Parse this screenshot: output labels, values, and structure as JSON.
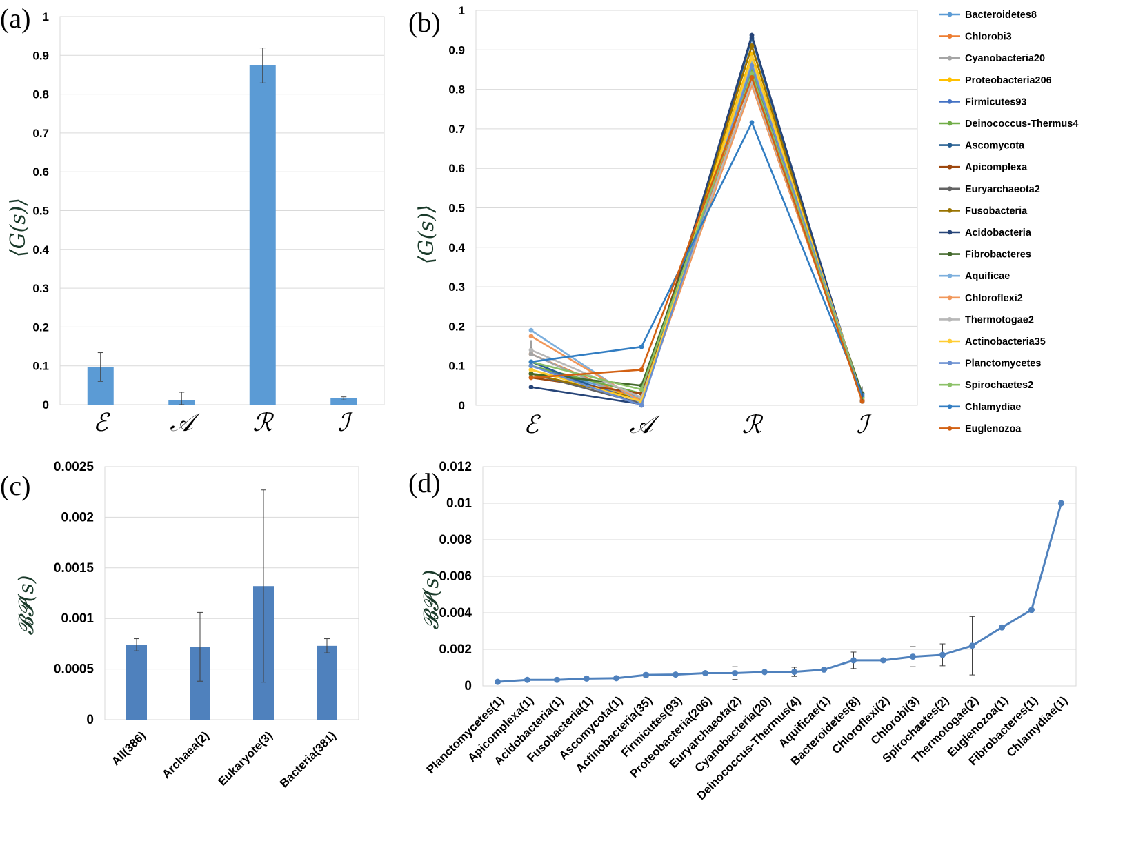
{
  "chart_data": [
    {
      "id": "a",
      "type": "bar",
      "panel_label": "(a)",
      "ylabel": "⟨G(s)⟩",
      "categories": [
        "ℰ",
        "𝒜",
        "ℛ",
        "ℐ"
      ],
      "values": [
        0.097,
        0.012,
        0.874,
        0.016
      ],
      "errors": [
        0.037,
        0.02,
        0.045,
        0.004
      ],
      "ylim": [
        0,
        1
      ],
      "yticks": [
        0,
        0.1,
        0.2,
        0.3,
        0.4,
        0.5,
        0.6,
        0.7,
        0.8,
        0.9,
        1
      ],
      "ytick_labels": [
        "0",
        "0.1",
        "0.2",
        "0.3",
        "0.4",
        "0.5",
        "0.6",
        "0.7",
        "0.8",
        "0.9",
        "1"
      ],
      "color": "#5b9bd5",
      "grid": true
    },
    {
      "id": "b",
      "type": "line",
      "panel_label": "(b)",
      "ylabel": "⟨G(s)⟩",
      "categories": [
        "ℰ",
        "𝒜",
        "ℛ",
        "ℐ"
      ],
      "ylim": [
        0,
        1
      ],
      "yticks": [
        0,
        0.1,
        0.2,
        0.3,
        0.4,
        0.5,
        0.6,
        0.7,
        0.8,
        0.9,
        1
      ],
      "ytick_labels": [
        "0",
        "0.1",
        "0.2",
        "0.3",
        "0.4",
        "0.5",
        "0.6",
        "0.7",
        "0.8",
        "0.9",
        "1"
      ],
      "legend_position": "right",
      "series": [
        {
          "name": "Bacteroidetes8",
          "color": "#5b9bd5",
          "values": [
            0.1,
            0.02,
            0.85,
            0.02
          ]
        },
        {
          "name": "Chlorobi3",
          "color": "#ed7d31",
          "values": [
            0.13,
            0.01,
            0.84,
            0.015
          ]
        },
        {
          "name": "Cyanobacteria20",
          "color": "#a5a5a5",
          "values": [
            0.13,
            0.005,
            0.86,
            0.02
          ]
        },
        {
          "name": "Proteobacteria206",
          "color": "#ffc000",
          "values": [
            0.09,
            0.015,
            0.89,
            0.02
          ]
        },
        {
          "name": "Firmicutes93",
          "color": "#4472c4",
          "values": [
            0.1,
            0.01,
            0.87,
            0.02
          ]
        },
        {
          "name": "Deinococcus-Thermus4",
          "color": "#70ad47",
          "values": [
            0.1,
            0.03,
            0.85,
            0.02
          ]
        },
        {
          "name": "Ascomycota",
          "color": "#255e91",
          "values": [
            0.11,
            0.0,
            0.93,
            0.01
          ]
        },
        {
          "name": "Apicomplexa",
          "color": "#9e480e",
          "values": [
            0.07,
            0.03,
            0.91,
            0.01
          ]
        },
        {
          "name": "Euryarchaeota2",
          "color": "#636363",
          "values": [
            0.08,
            0.005,
            0.88,
            0.02
          ]
        },
        {
          "name": "Fusobacteria",
          "color": "#997300",
          "values": [
            0.08,
            0.015,
            0.91,
            0.01
          ]
        },
        {
          "name": "Acidobacteria",
          "color": "#264478",
          "values": [
            0.046,
            0.003,
            0.937,
            0.01
          ]
        },
        {
          "name": "Fibrobacteres",
          "color": "#43682b",
          "values": [
            0.08,
            0.05,
            0.84,
            0.03
          ]
        },
        {
          "name": "Aquificae",
          "color": "#7cafdd",
          "values": [
            0.19,
            0.005,
            0.87,
            0.02
          ]
        },
        {
          "name": "Chloroflexi2",
          "color": "#f1975a",
          "values": [
            0.175,
            0.01,
            0.81,
            0.02
          ]
        },
        {
          "name": "Thermotogae2",
          "color": "#b7b7b7",
          "values": [
            0.14,
            0.02,
            0.82,
            0.02
          ]
        },
        {
          "name": "Actinobacteria35",
          "color": "#ffcd33",
          "values": [
            0.09,
            0.01,
            0.88,
            0.02
          ]
        },
        {
          "name": "Planctomycetes",
          "color": "#698ed0",
          "values": [
            0.1,
            0.0,
            0.86,
            0.02
          ]
        },
        {
          "name": "Spirochaetes2",
          "color": "#8cc168",
          "values": [
            0.11,
            0.04,
            0.84,
            0.02
          ]
        },
        {
          "name": "Chlamydiae",
          "color": "#327dc2",
          "values": [
            0.11,
            0.148,
            0.716,
            0.026
          ]
        },
        {
          "name": "Euglenozoa",
          "color": "#d26012",
          "values": [
            0.07,
            0.09,
            0.83,
            0.01
          ]
        }
      ]
    },
    {
      "id": "c",
      "type": "bar",
      "panel_label": "(c)",
      "ylabel": "𝓑𝓟(s)",
      "categories": [
        "All(386)",
        "Archaea(2)",
        "Eukaryote(3)",
        "Bacteria(381)"
      ],
      "values": [
        0.00074,
        0.00072,
        0.00132,
        0.00073
      ],
      "errors": [
        6e-05,
        0.00034,
        0.00095,
        7e-05
      ],
      "ylim": [
        0,
        0.0025
      ],
      "yticks": [
        0,
        0.0005,
        0.001,
        0.0015,
        0.002,
        0.0025
      ],
      "ytick_labels": [
        "0",
        "0.0005",
        "0.001",
        "0.0015",
        "0.002",
        "0.0025"
      ],
      "color": "#4f81bd",
      "grid": true
    },
    {
      "id": "d",
      "type": "line",
      "panel_label": "(d)",
      "ylabel": "𝓑𝓟(s)",
      "categories": [
        "Planctomycetes(1)",
        "Apicomplexa(1)",
        "Acidobacteria(1)",
        "Fusobacteria(1)",
        "Ascomycota(1)",
        "Actinobacteria(35)",
        "Firmicutes(93)",
        "Proteobacteria(206)",
        "Euryarchaeota(2)",
        "Cyanobacteria(20)",
        "Deinococcus-Thermus(4)",
        "Aquificae(1)",
        "Bacteroidetes(8)",
        "Chloroflexi(2)",
        "Chlorobi(3)",
        "Spirochaetes(2)",
        "Thermotogae(2)",
        "Euglenozoa(1)",
        "Fibrobacteres(1)",
        "Chlamydiae(1)"
      ],
      "values": [
        0.00022,
        0.00033,
        0.00033,
        0.0004,
        0.00042,
        0.0006,
        0.00062,
        0.0007,
        0.0007,
        0.00076,
        0.00077,
        0.00089,
        0.0014,
        0.0014,
        0.0016,
        0.0017,
        0.0022,
        0.0032,
        0.00416,
        0.01
      ],
      "errors": [
        0,
        0,
        0,
        0,
        0,
        0.0001,
        0,
        0,
        0.00035,
        0,
        0.00025,
        0,
        0.00045,
        0,
        0.00055,
        0.0006,
        0.0016,
        0,
        0,
        0
      ],
      "ylim": [
        0,
        0.012
      ],
      "yticks": [
        0,
        0.002,
        0.004,
        0.006,
        0.008,
        0.01,
        0.012
      ],
      "ytick_labels": [
        "0",
        "0.002",
        "0.004",
        "0.006",
        "0.008",
        "0.01",
        "0.012"
      ],
      "color": "#4f81bd",
      "grid": true
    }
  ]
}
